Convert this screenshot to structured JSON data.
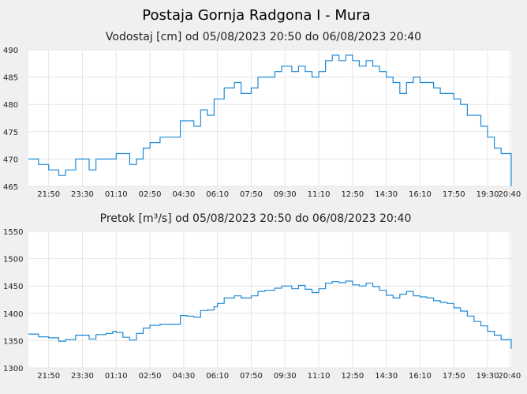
{
  "page": {
    "title": "Postaja Gornja Radgona I - Mura"
  },
  "colors": {
    "line": "#1f8ad6",
    "grid": "#e6e6e6",
    "plot_bg": "#ffffff",
    "page_bg": "#f0f0f0"
  },
  "chart_data": [
    {
      "type": "line",
      "title": "Vodostaj [cm] od 05/08/2023 20:50 do 06/08/2023 20:40",
      "xlabel": "",
      "ylabel": "",
      "x_tick_labels": [
        "21:50",
        "23:30",
        "01:10",
        "02:50",
        "04:30",
        "06:10",
        "07:50",
        "09:30",
        "11:10",
        "12:50",
        "14:30",
        "16:10",
        "17:50",
        "19:30",
        "20:40"
      ],
      "y_ticks": [
        465,
        470,
        475,
        480,
        485,
        490
      ],
      "ylim": [
        465,
        490
      ],
      "grid": true,
      "legend": "none",
      "series": [
        {
          "x": [
            "20:50",
            "21:20",
            "21:50",
            "22:20",
            "22:40",
            "23:10",
            "23:30",
            "23:50",
            "00:10",
            "00:40",
            "01:00",
            "01:10",
            "01:30",
            "01:50",
            "02:10",
            "02:30",
            "02:50",
            "03:20",
            "03:50",
            "04:00",
            "04:20",
            "04:40",
            "05:00",
            "05:20",
            "05:40",
            "06:00",
            "06:10",
            "06:30",
            "07:00",
            "07:20",
            "07:50",
            "08:10",
            "08:30",
            "09:00",
            "09:20",
            "09:50",
            "10:10",
            "10:30",
            "10:50",
            "11:10",
            "11:30",
            "11:50",
            "12:10",
            "12:30",
            "12:50",
            "13:10",
            "13:30",
            "13:50",
            "14:10",
            "14:30",
            "14:50",
            "15:10",
            "15:30",
            "15:50",
            "16:10",
            "16:30",
            "16:50",
            "17:10",
            "17:30",
            "17:50",
            "18:10",
            "18:30",
            "18:50",
            "19:10",
            "19:30",
            "19:50",
            "20:10",
            "20:40"
          ],
          "y": [
            470,
            469,
            468,
            467,
            468,
            470,
            470,
            468,
            470,
            470,
            470,
            471,
            471,
            469,
            470,
            472,
            473,
            474,
            474,
            474,
            477,
            477,
            476,
            479,
            478,
            481,
            481,
            483,
            484,
            482,
            483,
            485,
            485,
            486,
            487,
            486,
            487,
            486,
            485,
            486,
            488,
            489,
            488,
            489,
            488,
            487,
            488,
            487,
            486,
            485,
            484,
            482,
            484,
            485,
            484,
            484,
            483,
            482,
            482,
            481,
            480,
            478,
            478,
            476,
            474,
            472,
            471,
            465
          ]
        }
      ]
    },
    {
      "type": "line",
      "title": "Pretok [m³/s] od 05/08/2023 20:50 do 06/08/2023 20:40",
      "xlabel": "",
      "ylabel": "",
      "x_tick_labels": [
        "21:50",
        "23:30",
        "01:10",
        "02:50",
        "04:30",
        "06:10",
        "07:50",
        "09:30",
        "11:10",
        "12:50",
        "14:30",
        "16:10",
        "17:50",
        "19:30",
        "20:40"
      ],
      "y_ticks": [
        1300,
        1350,
        1400,
        1450,
        1500,
        1550
      ],
      "ylim": [
        1300,
        1550
      ],
      "grid": true,
      "legend": "none",
      "series": [
        {
          "x": [
            "20:50",
            "21:20",
            "21:50",
            "22:20",
            "22:40",
            "23:10",
            "23:30",
            "23:50",
            "00:10",
            "00:40",
            "01:00",
            "01:10",
            "01:30",
            "01:50",
            "02:10",
            "02:30",
            "02:50",
            "03:20",
            "03:50",
            "04:00",
            "04:20",
            "04:40",
            "05:00",
            "05:20",
            "05:40",
            "06:00",
            "06:10",
            "06:30",
            "07:00",
            "07:20",
            "07:50",
            "08:10",
            "08:30",
            "09:00",
            "09:20",
            "09:50",
            "10:10",
            "10:30",
            "10:50",
            "11:10",
            "11:30",
            "11:50",
            "12:10",
            "12:30",
            "12:50",
            "13:10",
            "13:30",
            "13:50",
            "14:10",
            "14:30",
            "14:50",
            "15:10",
            "15:30",
            "15:50",
            "16:10",
            "16:30",
            "16:50",
            "17:10",
            "17:30",
            "17:50",
            "18:10",
            "18:30",
            "18:50",
            "19:10",
            "19:30",
            "19:50",
            "20:10",
            "20:40"
          ],
          "y": [
            1362,
            1357,
            1355,
            1349,
            1352,
            1360,
            1360,
            1353,
            1361,
            1363,
            1367,
            1365,
            1356,
            1351,
            1363,
            1373,
            1378,
            1380,
            1380,
            1380,
            1396,
            1395,
            1393,
            1405,
            1406,
            1412,
            1418,
            1428,
            1432,
            1428,
            1432,
            1440,
            1442,
            1446,
            1450,
            1445,
            1451,
            1444,
            1438,
            1445,
            1455,
            1458,
            1456,
            1459,
            1452,
            1450,
            1455,
            1449,
            1442,
            1433,
            1428,
            1435,
            1440,
            1432,
            1430,
            1428,
            1423,
            1420,
            1418,
            1410,
            1404,
            1395,
            1385,
            1377,
            1367,
            1360,
            1352,
            1335
          ]
        }
      ]
    }
  ]
}
